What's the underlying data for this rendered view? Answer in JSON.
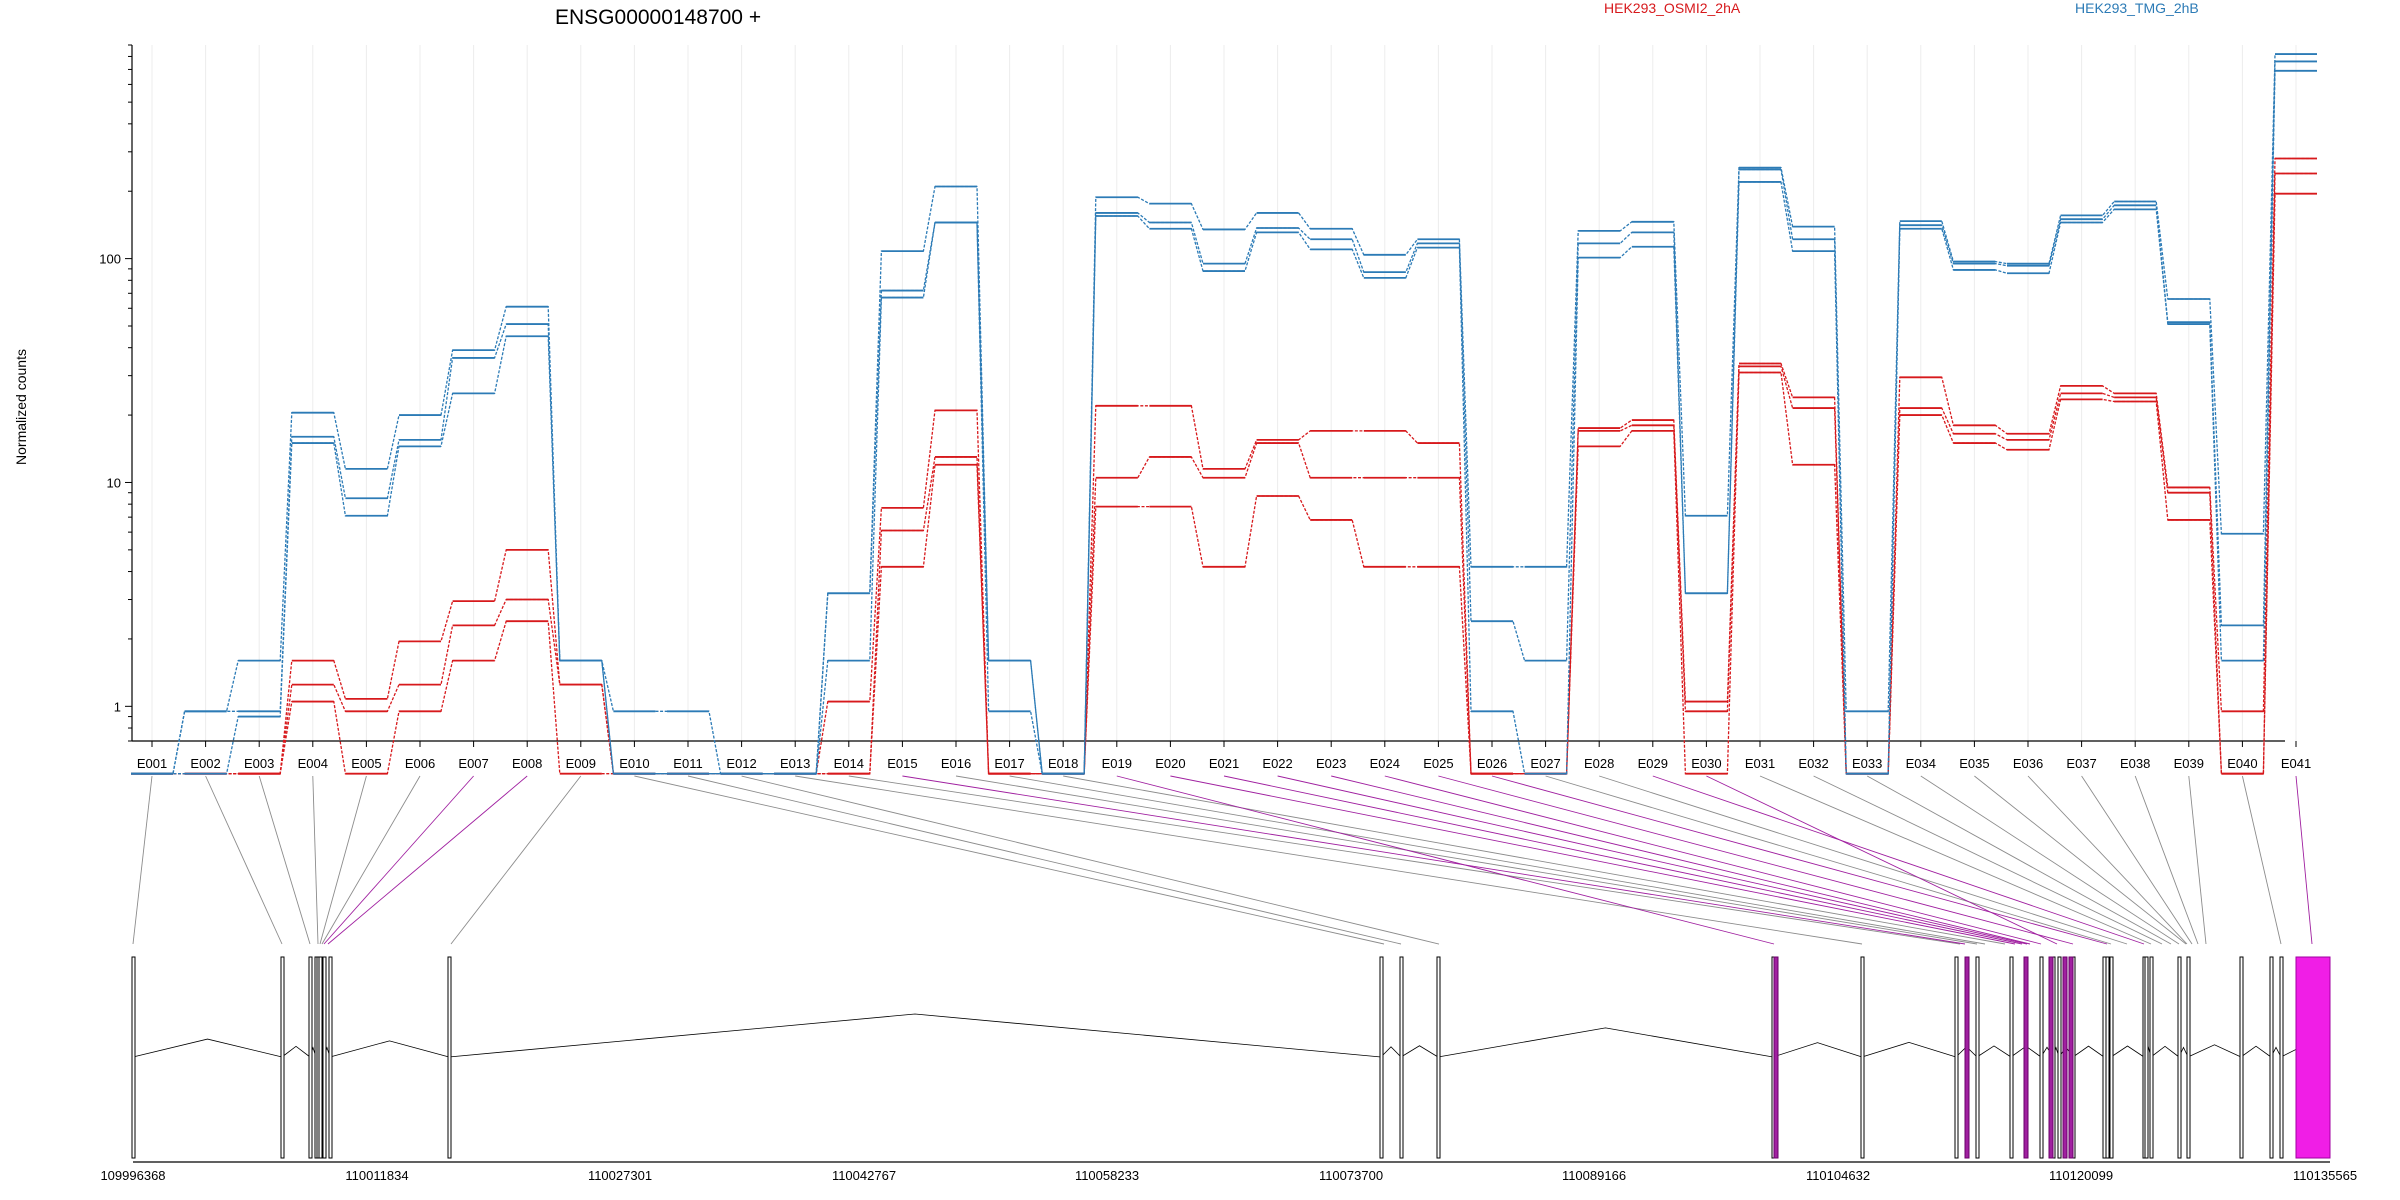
{
  "chart_data": {
    "type": "line",
    "title": "ENSG00000148700 +",
    "ylabel": "Normalized counts",
    "xlabel": "",
    "yscale": "log",
    "ylim": [
      0.7,
      900
    ],
    "yticks": [
      {
        "value": 1,
        "label": "1"
      },
      {
        "value": 10,
        "label": "10"
      },
      {
        "value": 100,
        "label": "100"
      }
    ],
    "legend": {
      "placement": "top",
      "entries": [
        {
          "label": "HEK293_OSMI2_2hA",
          "color": "#d7191c"
        },
        {
          "label": "HEK293_TMG_2hB",
          "color": "#2c7bb6"
        }
      ]
    },
    "categories": [
      "E001",
      "E002",
      "E003",
      "E004",
      "E005",
      "E006",
      "E007",
      "E008",
      "E009",
      "E010",
      "E011",
      "E012",
      "E013",
      "E014",
      "E015",
      "E016",
      "E017",
      "E018",
      "E019",
      "E020",
      "E021",
      "E022",
      "E023",
      "E024",
      "E025",
      "E026",
      "E027",
      "E028",
      "E029",
      "E030",
      "E031",
      "E032",
      "E033",
      "E034",
      "E035",
      "E036",
      "E037",
      "E038",
      "E039",
      "E040",
      "E041"
    ],
    "series": [
      {
        "group": "HEK293_OSMI2_2hA",
        "color": "#d7191c",
        "values": [
          0.5,
          0.5,
          0.5,
          1.6,
          1.08,
          1.95,
          2.95,
          5.0,
          1.25,
          0.5,
          0.5,
          0.5,
          0.5,
          1.05,
          7.7,
          21,
          0.5,
          0.5,
          22,
          22,
          11.5,
          15.5,
          17,
          17,
          15,
          0.5,
          0.5,
          17.5,
          19,
          1.05,
          34,
          24,
          0.5,
          29.5,
          18,
          16.5,
          27,
          25,
          9.5,
          0.95,
          280
        ]
      },
      {
        "group": "HEK293_OSMI2_2hA",
        "color": "#d7191c",
        "values": [
          0.5,
          0.5,
          0.5,
          1.25,
          0.95,
          1.25,
          2.3,
          3.0,
          1.25,
          0.5,
          0.5,
          0.5,
          0.5,
          0.5,
          6.1,
          13,
          0.5,
          0.5,
          10.5,
          13,
          10.5,
          15,
          10.5,
          10.5,
          10.5,
          0.5,
          0.5,
          17,
          18,
          0.95,
          33,
          21.5,
          0.5,
          21.5,
          16.5,
          15.5,
          25,
          24,
          9,
          0.5,
          240
        ]
      },
      {
        "group": "HEK293_OSMI2_2hA",
        "color": "#d7191c",
        "values": [
          0.5,
          0.5,
          0.5,
          1.05,
          0.5,
          0.95,
          1.6,
          2.4,
          0.5,
          0.5,
          0.5,
          0.5,
          0.5,
          0.5,
          4.2,
          12,
          0.5,
          0.5,
          7.8,
          7.8,
          4.2,
          8.7,
          6.8,
          4.2,
          4.2,
          0.5,
          0.5,
          14.5,
          17,
          0.5,
          31,
          12,
          0.5,
          20,
          15,
          14,
          23.5,
          23,
          6.8,
          0.5,
          195
        ]
      },
      {
        "group": "HEK293_TMG_2hB",
        "color": "#2c7bb6",
        "values": [
          0.5,
          0.95,
          1.6,
          20.5,
          11.5,
          20,
          39,
          61,
          1.6,
          0.95,
          0.95,
          0.5,
          0.5,
          3.2,
          108,
          210,
          1.6,
          0.5,
          188,
          176,
          135,
          160,
          136,
          104,
          122,
          4.2,
          4.2,
          133,
          146,
          7.1,
          255,
          139,
          0.95,
          147,
          97,
          95,
          156,
          180,
          66,
          5.9,
          820
        ]
      },
      {
        "group": "HEK293_TMG_2hB",
        "color": "#2c7bb6",
        "values": [
          0.5,
          0.95,
          0.95,
          16,
          8.5,
          15.5,
          36,
          51,
          1.6,
          0.5,
          0.5,
          0.5,
          0.5,
          3.2,
          72,
          145,
          1.6,
          0.5,
          160,
          145,
          95,
          137,
          122,
          87,
          117,
          2.4,
          1.6,
          117,
          131,
          3.2,
          250,
          122,
          0.5,
          141,
          95,
          93,
          150,
          173,
          52,
          2.3,
          760
        ]
      },
      {
        "group": "HEK293_TMG_2hB",
        "color": "#2c7bb6",
        "values": [
          0.5,
          0.5,
          0.9,
          15,
          7.1,
          14.5,
          25,
          45,
          1.6,
          0.5,
          0.5,
          0.5,
          0.5,
          1.6,
          67,
          145,
          0.95,
          0.5,
          155,
          136,
          88,
          131,
          110,
          82,
          112,
          0.95,
          0.5,
          101,
          113,
          3.2,
          220,
          108,
          0.5,
          136,
          89,
          86,
          145,
          166,
          51,
          1.6,
          690
        ]
      }
    ]
  },
  "gene_model": {
    "coordinates": [
      "109996368",
      "110011834",
      "110027301",
      "110042767",
      "110058233",
      "110073700",
      "110089166",
      "110104632",
      "110120099",
      "110135565"
    ],
    "connector_color_normal": "#8c8c8c",
    "connector_color_significant": "#a020a0",
    "exon_fill_significant": "#f01ee6"
  }
}
